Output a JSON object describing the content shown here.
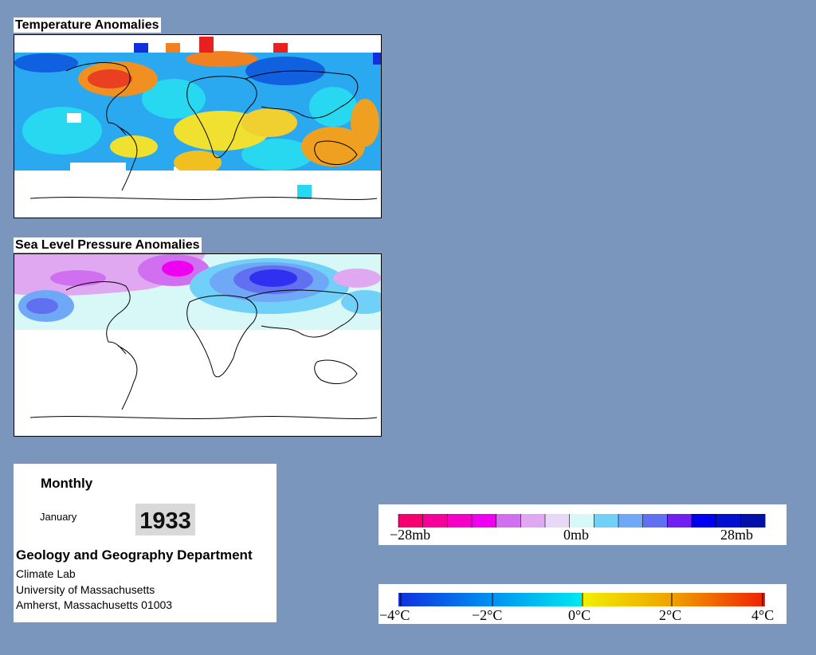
{
  "temperature_map": {
    "title": "Temperature Anomalies"
  },
  "pressure_map": {
    "title": "Sea Level Pressure Anomalies"
  },
  "info": {
    "mode": "Monthly",
    "month": "January",
    "year": "1933",
    "department": "Geology and Geography Department",
    "lines": [
      "Climate Lab",
      "University of Massachusetts",
      "Amherst, Massachusetts 01003"
    ]
  },
  "pressure_legend": {
    "labels": [
      "−28mb",
      "0mb",
      "28mb"
    ],
    "colors": [
      "#f5006e",
      "#f5009a",
      "#f500c6",
      "#f000f0",
      "#d070f0",
      "#e0a8f0",
      "#e8d8f8",
      "#d8f8f8",
      "#70d0f8",
      "#70a8f8",
      "#6070f0",
      "#7020f0",
      "#0000f0",
      "#0010d0",
      "#0010a8"
    ]
  },
  "temperature_legend": {
    "labels": [
      "−4°C",
      "−2°C",
      "0°C",
      "2°C",
      "4°C"
    ],
    "colors": [
      "#1040e0",
      "#00a0f0",
      "#00e0f0",
      "#f0f000",
      "#f0c000",
      "#f06000",
      "#f02000"
    ]
  },
  "colors": {
    "background": "#7a96bd",
    "panel": "#ffffff",
    "year_badge": "#d9d9d9"
  }
}
